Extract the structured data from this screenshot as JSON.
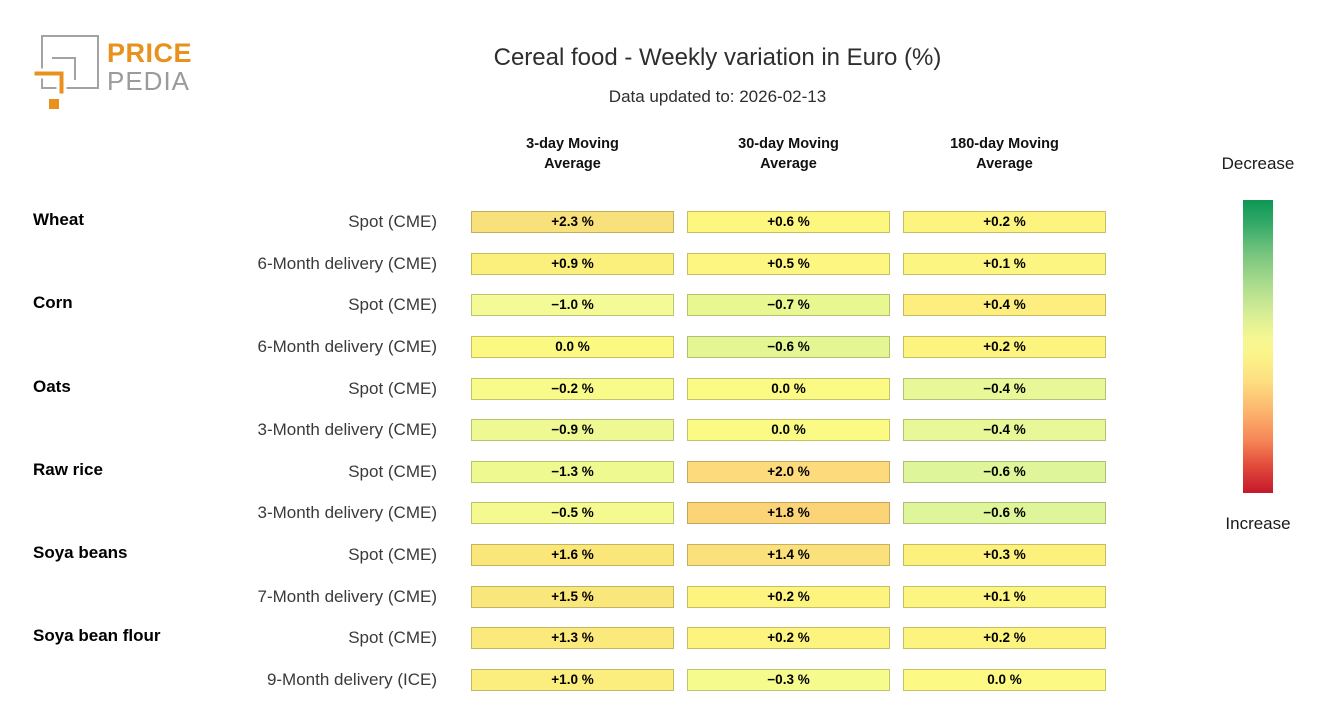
{
  "brand": {
    "logo_text_top": "PRICE",
    "logo_text_bottom": "PEDIA",
    "orange": "#E8911C",
    "gray": "#9B9B9B"
  },
  "header": {
    "title": "Cereal food - Weekly variation in Euro (%)",
    "subtitle": "Data updated to: 2026-02-13"
  },
  "chart_data": {
    "type": "heatmap",
    "title": "Cereal food - Weekly variation in Euro (%)",
    "subtitle": "Data updated to: 2026-02-13",
    "columns": [
      "3-day Moving\nAverage",
      "30-day Moving\nAverage",
      "180-day Moving\nAverage"
    ],
    "unit": "%",
    "rows": [
      {
        "group": "Wheat",
        "label": "Spot (CME)",
        "values": [
          2.3,
          0.6,
          0.2
        ],
        "display": [
          "+2.3 %",
          "+0.6 %",
          "+0.2 %"
        ],
        "colors": [
          "#f8e07b",
          "#fdf67f",
          "#fdf480"
        ]
      },
      {
        "group": "",
        "label": "6-Month delivery (CME)",
        "values": [
          0.9,
          0.5,
          0.1
        ],
        "display": [
          "+0.9 %",
          "+0.5 %",
          "+0.1 %"
        ],
        "colors": [
          "#fcf07d",
          "#fdf680",
          "#fdf582"
        ]
      },
      {
        "group": "Corn",
        "label": "Spot (CME)",
        "values": [
          -1.0,
          -0.7,
          0.4
        ],
        "display": [
          "−1.0 %",
          "−0.7 %",
          "+0.4 %"
        ],
        "colors": [
          "#f3fa96",
          "#e9f791",
          "#fdee7f"
        ]
      },
      {
        "group": "",
        "label": "6-Month delivery (CME)",
        "values": [
          0.0,
          -0.6,
          0.2
        ],
        "display": [
          "0.0 %",
          "−0.6 %",
          "+0.2 %"
        ],
        "colors": [
          "#fbf981",
          "#e4f694",
          "#fdf37f"
        ]
      },
      {
        "group": "Oats",
        "label": "Spot (CME)",
        "values": [
          -0.2,
          0.0,
          -0.4
        ],
        "display": [
          "−0.2 %",
          "0.0 %",
          "−0.4 %"
        ],
        "colors": [
          "#f8fb89",
          "#fbfa84",
          "#e8f798"
        ]
      },
      {
        "group": "",
        "label": "3-Month delivery (CME)",
        "values": [
          -0.9,
          0.0,
          -0.4
        ],
        "display": [
          "−0.9 %",
          "0.0 %",
          "−0.4 %"
        ],
        "colors": [
          "#eff994",
          "#fbfa84",
          "#e8f798"
        ]
      },
      {
        "group": "Raw rice",
        "label": "Spot (CME)",
        "values": [
          -1.3,
          2.0,
          -0.6
        ],
        "display": [
          "−1.3 %",
          "+2.0 %",
          "−0.6 %"
        ],
        "colors": [
          "#eef98f",
          "#fdda7c",
          "#dff59a"
        ]
      },
      {
        "group": "",
        "label": "3-Month delivery (CME)",
        "values": [
          -0.5,
          1.8,
          -0.6
        ],
        "display": [
          "−0.5 %",
          "+1.8 %",
          "−0.6 %"
        ],
        "colors": [
          "#f5fa90",
          "#fcd478",
          "#dff59a"
        ]
      },
      {
        "group": "Soya beans",
        "label": "Spot (CME)",
        "values": [
          1.6,
          1.4,
          0.3
        ],
        "display": [
          "+1.6 %",
          "+1.4 %",
          "+0.3 %"
        ],
        "colors": [
          "#fae679",
          "#fbe17b",
          "#fdf17e"
        ]
      },
      {
        "group": "",
        "label": "7-Month delivery (CME)",
        "values": [
          1.5,
          0.2,
          0.1
        ],
        "display": [
          "+1.5 %",
          "+0.2 %",
          "+0.1 %"
        ],
        "colors": [
          "#fae77c",
          "#fdf480",
          "#fdf582"
        ]
      },
      {
        "group": "Soya bean flour",
        "label": "Spot (CME)",
        "values": [
          1.3,
          0.2,
          0.2
        ],
        "display": [
          "+1.3 %",
          "+0.2 %",
          "+0.2 %"
        ],
        "colors": [
          "#fbe97c",
          "#fdf480",
          "#fdf480"
        ]
      },
      {
        "group": "",
        "label": "9-Month delivery (ICE)",
        "values": [
          1.0,
          -0.3,
          0.0
        ],
        "display": [
          "+1.0 %",
          "−0.3 %",
          "0.0 %"
        ],
        "colors": [
          "#fcee7e",
          "#f6fb8e",
          "#fcfa85"
        ]
      }
    ],
    "legend": {
      "top_label": "Decrease",
      "bottom_label": "Increase",
      "gradient_stops": [
        {
          "pos": 0,
          "color": "#0d9655"
        },
        {
          "pos": 8,
          "color": "#33a968"
        },
        {
          "pos": 18,
          "color": "#74c47d"
        },
        {
          "pos": 28,
          "color": "#a7da8c"
        },
        {
          "pos": 38,
          "color": "#d3ec95"
        },
        {
          "pos": 47,
          "color": "#f5f793"
        },
        {
          "pos": 53,
          "color": "#fcf489"
        },
        {
          "pos": 62,
          "color": "#fdde80"
        },
        {
          "pos": 72,
          "color": "#fcb56e"
        },
        {
          "pos": 82,
          "color": "#f68657"
        },
        {
          "pos": 91,
          "color": "#e1493a"
        },
        {
          "pos": 100,
          "color": "#c5182d"
        }
      ]
    }
  }
}
